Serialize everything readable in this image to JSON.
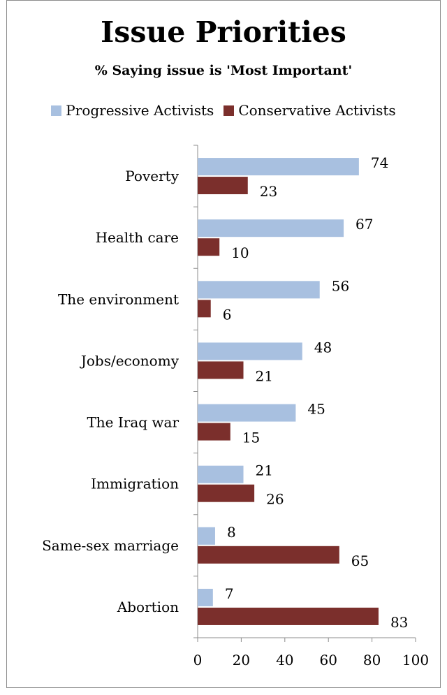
{
  "chart_data": {
    "type": "bar",
    "orientation": "horizontal",
    "title": "Issue Priorities",
    "subtitle": "% Saying issue is 'Most Important'",
    "categories": [
      "Poverty",
      "Health care",
      "The environment",
      "Jobs/economy",
      "The Iraq war",
      "Immigration",
      "Same-sex marriage",
      "Abortion"
    ],
    "series": [
      {
        "name": "Progressive Activists",
        "color": "#a8c0e0",
        "values": [
          74,
          67,
          56,
          48,
          45,
          21,
          8,
          7
        ]
      },
      {
        "name": "Conservative Activists",
        "color": "#7b2f2c",
        "values": [
          23,
          10,
          6,
          21,
          15,
          26,
          65,
          83
        ]
      }
    ],
    "xlim": [
      0,
      100
    ],
    "xticks": [
      0,
      20,
      40,
      60,
      80,
      100
    ],
    "grid": false,
    "legend_position": "top"
  }
}
